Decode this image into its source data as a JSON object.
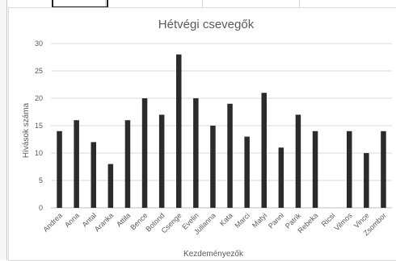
{
  "chart_data": {
    "type": "bar",
    "title": "Hétvégi csevegők",
    "xlabel": "Kezdeményezők",
    "ylabel": "Hívások száma",
    "ylim": [
      0,
      30
    ],
    "yticks": [
      0,
      5,
      10,
      15,
      20,
      25,
      30
    ],
    "grid": true,
    "bar_color": "#2b2b2b",
    "categories": [
      "Andrea",
      "Anna",
      "Antal",
      "Aranka",
      "Attila",
      "Bence",
      "Botond",
      "Csenge",
      "Evelin",
      "Julianna",
      "Kata",
      "Marci",
      "Matyi",
      "Panni",
      "Patrik",
      "Rebeka",
      "Ricsi",
      "Vilmos",
      "Vince",
      "Zsombor"
    ],
    "values": [
      14,
      16,
      12,
      8,
      16,
      20,
      17,
      28,
      20,
      15,
      19,
      13,
      21,
      11,
      17,
      14,
      0,
      14,
      10,
      14
    ]
  }
}
